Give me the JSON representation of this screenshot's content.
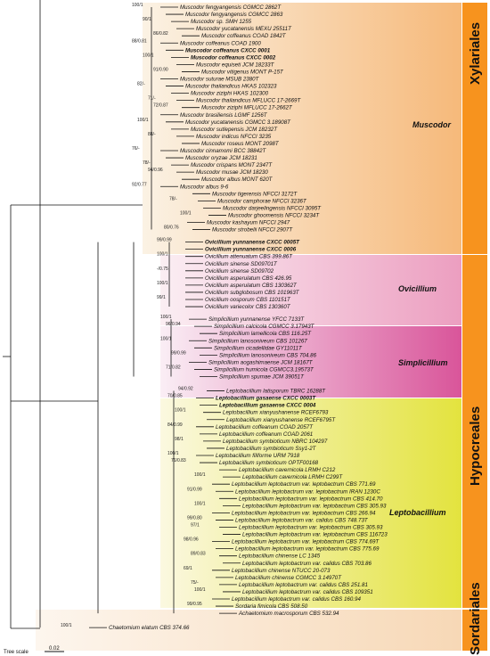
{
  "figure": {
    "scale_label": "Tree scale",
    "scale_value": "0.02"
  },
  "orders": [
    {
      "name": "Xylariales"
    },
    {
      "name": "Hypocreales"
    },
    {
      "name": "Sordariales"
    }
  ],
  "genera": [
    "Muscodor",
    "Ovicillium",
    "Simplicillium",
    "Leptobacillium"
  ],
  "tips": [
    {
      "label": "Muscodor fengyangensis CGMCC 2862T",
      "bold": false
    },
    {
      "label": "Muscodor fengyangensis CGMCC 2863",
      "bold": false
    },
    {
      "label": "Muscodor sp. SMH 1255",
      "bold": false
    },
    {
      "label": "Muscodor yucatanensis MEXU 25511T",
      "bold": false
    },
    {
      "label": "Muscodor coffeanus COAD 1842T",
      "bold": false
    },
    {
      "label": "Muscodor coffeanus COAD 1900",
      "bold": false
    },
    {
      "label": "Muscodor coffeanus CXCC 0001",
      "bold": true
    },
    {
      "label": "Muscodor coffeanus CXCC 0002",
      "bold": true
    },
    {
      "label": "Muscodor equiseti JCM 18233T",
      "bold": false
    },
    {
      "label": "Muscodor vitigenus MONT P-15T",
      "bold": false
    },
    {
      "label": "Muscodor suturae MSUB 2380T",
      "bold": false
    },
    {
      "label": "Muscodor thailandicus HKAS 102323",
      "bold": false
    },
    {
      "label": "Muscodor ziziphi HKAS 102300",
      "bold": false
    },
    {
      "label": "Muscodor thailandicus MFLUCC 17-2669T",
      "bold": false
    },
    {
      "label": "Muscodor ziziphi MFLUCC 17-2662T",
      "bold": false
    },
    {
      "label": "Muscodor brasiliensis LGMF 1256T",
      "bold": false
    },
    {
      "label": "Muscodor yucatanensis CGMCC 3.18908T",
      "bold": false
    },
    {
      "label": "Muscodor sutlepensis JCM 18232T",
      "bold": false
    },
    {
      "label": "Muscodor indicus NFCCI 3235",
      "bold": false
    },
    {
      "label": "Muscodor roseus MONT 2098T",
      "bold": false
    },
    {
      "label": "Muscodor cinnamomi BCC 38842T",
      "bold": false
    },
    {
      "label": "Muscodor oryzae JCM 18231",
      "bold": false
    },
    {
      "label": "Muscodor crispans MONT 2347T",
      "bold": false
    },
    {
      "label": "Muscodor musae JCM 18230",
      "bold": false
    },
    {
      "label": "Muscodor albus MONT 620T",
      "bold": false
    },
    {
      "label": "Muscodor albus 9-6",
      "bold": false
    },
    {
      "label": "Muscodor tigerensis NFCCI 3172T",
      "bold": false
    },
    {
      "label": "Muscodor camphorae NFCCI 3236T",
      "bold": false
    },
    {
      "label": "Muscodor darjeelingensis NFCCI 3095T",
      "bold": false
    },
    {
      "label": "Muscodor ghoomensis NFCCI 3234T",
      "bold": false
    },
    {
      "label": "Muscodor kashayum NFCCI 2947",
      "bold": false
    },
    {
      "label": "Muscodor strobelii NFCCI 2907T",
      "bold": false
    },
    {
      "label": "Ovicillium yunnanense CXCC 0005T",
      "bold": true
    },
    {
      "label": "Ovicillium yunnanense CXCC 0006",
      "bold": true
    },
    {
      "label": "Ovicillium attenuatum CBS 399.86T",
      "bold": false
    },
    {
      "label": "Ovicillium sinense SD09701T",
      "bold": false
    },
    {
      "label": "Ovicillium sinense SD09702",
      "bold": false
    },
    {
      "label": "Ovicillium asperulatum CBS 426.95",
      "bold": false
    },
    {
      "label": "Ovicillium asperulatum CBS 130362T",
      "bold": false
    },
    {
      "label": "Ovicillium subglobosum CBS 101963T",
      "bold": false
    },
    {
      "label": "Ovicillium oosporum CBS 110151T",
      "bold": false
    },
    {
      "label": "Ovicillium variecolor CBS 130360T",
      "bold": false
    },
    {
      "label": "Simplicillium yunnanense YFCC 7133T",
      "bold": false
    },
    {
      "label": "Simplicillium calcicola CGMCC 3.17943T",
      "bold": false
    },
    {
      "label": "Simplicillium lamellicola CBS 116.25T",
      "bold": false
    },
    {
      "label": "Simplicillium lanosoniveum CBS 101267",
      "bold": false
    },
    {
      "label": "Simplicillium cicadellidae GY11011T",
      "bold": false
    },
    {
      "label": "Simplicillium lanosoniveum CBS 704.86",
      "bold": false
    },
    {
      "label": "Simplicillium aogashimaense JCM 18167T",
      "bold": false
    },
    {
      "label": "Simplicillium humicola CGMCC3.19573T",
      "bold": false
    },
    {
      "label": "Simplicillium spumae JCM 39051T",
      "bold": false
    },
    {
      "label": "Leptobacillium latisporum TBRC 16288T",
      "bold": false
    },
    {
      "label": "Leptobacillium gasaense CXCC 0003T",
      "bold": true
    },
    {
      "label": "Leptobacillium gasaense CXCC 0004",
      "bold": true
    },
    {
      "label": "Leptobacillium xianyushanense RCEF6793",
      "bold": false
    },
    {
      "label": "Leptobacillium xianyushanense RCEF6795T",
      "bold": false
    },
    {
      "label": "Leptobacillium coffeanum COAD 2057T",
      "bold": false
    },
    {
      "label": "Leptobacillium coffeanum COAD 2061",
      "bold": false
    },
    {
      "label": "Leptobacillium symbioticum NBRC 104297",
      "bold": false
    },
    {
      "label": "Leptobacillium symbioticum Ssy1-2T",
      "bold": false
    },
    {
      "label": "Leptobacillium filiforme URM 7918",
      "bold": false
    },
    {
      "label": "Leptobacillium symbioticum OPTF00168",
      "bold": false
    },
    {
      "label": "Leptobacillium cavernicola LRMH C212",
      "bold": false
    },
    {
      "label": "Leptobacillium cavernicola LRMH C299T",
      "bold": false
    },
    {
      "label": "Leptobacillium leptobactrum var. leptobactrum CBS 771.69",
      "bold": false
    },
    {
      "label": "Leptobacillium leptobactrum var. leptobactrum IRAN 1230C",
      "bold": false
    },
    {
      "label": "Leptobacillium leptobactrum var. leptobactrum CBS 414.70",
      "bold": false
    },
    {
      "label": "Leptobacillium leptobactrum var. leptobactrum CBS 305.93",
      "bold": false
    },
    {
      "label": "Leptobacillium leptobactrum var. leptobactrum CBS 266.94",
      "bold": false
    },
    {
      "label": "Leptobacillium leptobactrum var. calidus CBS 748.73T",
      "bold": false
    },
    {
      "label": "Leptobacillium leptobactrum var. leptobactrum CBS 305.93",
      "bold": false
    },
    {
      "label": "Leptobacillium leptobactrum var. leptobactrum CBS 116723",
      "bold": false
    },
    {
      "label": "Leptobacillium leptobactrum var. leptobactrum CBS 774.69T",
      "bold": false
    },
    {
      "label": "Leptobacillium leptobactrum var. leptobactrum CBS 775.69",
      "bold": false
    },
    {
      "label": "Leptobacillium chinense LC 1345",
      "bold": false
    },
    {
      "label": "Leptobacillium leptobactrum var. calidus CBS 703.86",
      "bold": false
    },
    {
      "label": "Leptobacillium chinense NTUCC 20-073",
      "bold": false
    },
    {
      "label": "Leptobacillium chinense CGMCC 3.14970T",
      "bold": false
    },
    {
      "label": "Leptobacillium leptobactrum var. calidus CBS 251.81",
      "bold": false
    },
    {
      "label": "Leptobacillium leptobactrum var. calidus CBS 109351",
      "bold": false
    },
    {
      "label": "Leptobacillium leptobactrum var. calidus CBS 160.94",
      "bold": false
    },
    {
      "label": "Sordaria fimicola CBS 508.50",
      "bold": false
    },
    {
      "label": "Achaetomium macrosporum CBS 532.94",
      "bold": false
    },
    {
      "label": "Chaetomium elatum CBS 374.66",
      "bold": false
    }
  ],
  "supports": [
    "100/1",
    "90/1",
    "86/0.82",
    "88/0.81",
    "100/1",
    "91/0.90",
    "82/-",
    "71/-",
    "72/0.87",
    "100/1",
    "88/-",
    "76/-",
    "78/-",
    "94/0.96",
    "92/0.77",
    "78/-",
    "100/1",
    "80/0.76",
    "99/0.99",
    "100/1",
    "-/0.75",
    "100/1",
    "99/1",
    "100/1",
    "96/0.94",
    "100/1",
    "99/0.99",
    "71/0.82",
    "94/0.92",
    "70/0.85",
    "100/1",
    "84/0.99",
    "98/1",
    "100/1",
    "76/0.83",
    "100/1",
    "91/0.99",
    "100/1",
    "99/0.80",
    "97/1",
    "98/0.96",
    "89/0.83",
    "69/1",
    "75/-",
    "100/1",
    "99/0.95",
    "100/1"
  ]
}
